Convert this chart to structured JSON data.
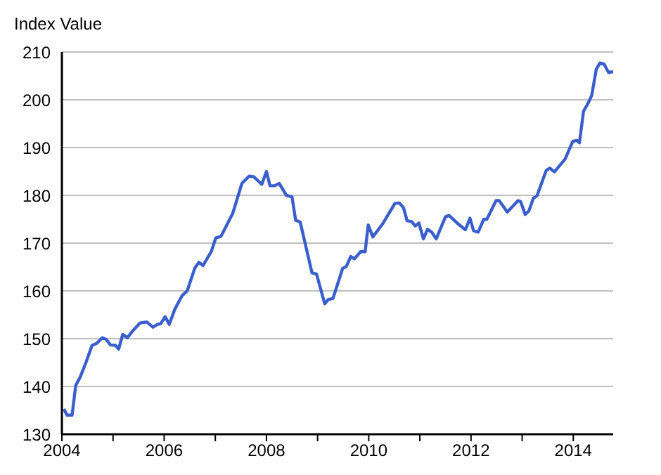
{
  "chart_data": {
    "type": "line",
    "ylabel": "Index Value",
    "x": [
      2004.04,
      2004.1,
      2004.2,
      2004.27,
      2004.36,
      2004.47,
      2004.59,
      2004.68,
      2004.79,
      2004.86,
      2004.95,
      2005.05,
      2005.11,
      2005.19,
      2005.28,
      2005.39,
      2005.53,
      2005.66,
      2005.78,
      2005.87,
      2005.93,
      2006.02,
      2006.1,
      2006.21,
      2006.35,
      2006.45,
      2006.6,
      2006.68,
      2006.76,
      2006.92,
      2007.01,
      2007.11,
      2007.34,
      2007.52,
      2007.66,
      2007.75,
      2007.91,
      2008.0,
      2008.07,
      2008.16,
      2008.25,
      2008.39,
      2008.5,
      2008.57,
      2008.66,
      2008.89,
      2008.98,
      2009.14,
      2009.21,
      2009.3,
      2009.49,
      2009.56,
      2009.65,
      2009.72,
      2009.84,
      2009.93,
      2009.99,
      2010.08,
      2010.27,
      2010.51,
      2010.6,
      2010.68,
      2010.75,
      2010.84,
      2010.91,
      2010.98,
      2011.07,
      2011.15,
      2011.23,
      2011.32,
      2011.5,
      2011.57,
      2011.73,
      2011.89,
      2011.98,
      2012.05,
      2012.14,
      2012.25,
      2012.31,
      2012.49,
      2012.55,
      2012.71,
      2012.92,
      2012.97,
      2013.06,
      2013.13,
      2013.22,
      2013.29,
      2013.47,
      2013.54,
      2013.63,
      2013.84,
      2013.9,
      2013.99,
      2014.07,
      2014.12,
      2014.2,
      2014.29,
      2014.36,
      2014.45,
      2014.52,
      2014.6,
      2014.69,
      2014.78
    ],
    "series": [
      {
        "color": "#3a5fcd",
        "values": [
          135.3,
          134,
          134,
          140.2,
          142,
          145,
          148.6,
          149,
          150.2,
          149.9,
          148.7,
          148.6,
          147.8,
          150.9,
          150.2,
          151.7,
          153.3,
          153.5,
          152.4,
          153,
          153.1,
          154.6,
          153,
          156.2,
          159,
          160,
          164.8,
          166,
          165.3,
          168.2,
          171.1,
          171.4,
          176.2,
          182.5,
          184,
          183.9,
          182.3,
          185,
          182,
          182,
          182.5,
          180,
          179.7,
          174.8,
          174.4,
          163.8,
          163.5,
          157.3,
          158.2,
          158.4,
          164.7,
          165.1,
          167.2,
          166.7,
          168.2,
          168.2,
          173.8,
          171.3,
          174,
          178.3,
          178.4,
          177.4,
          174.7,
          174.5,
          173.6,
          174.2,
          170.9,
          172.9,
          172.3,
          170.9,
          175.5,
          175.8,
          174.2,
          172.8,
          175.2,
          172.6,
          172.3,
          175,
          175,
          178.9,
          178.9,
          176.5,
          178.9,
          178.7,
          176,
          176.7,
          179.4,
          179.9,
          185.2,
          185.7,
          184.9,
          187.6,
          189.1,
          191.3,
          191.5,
          191,
          197.6,
          199.3,
          200.9,
          206.4,
          207.7,
          207.5,
          205.7,
          205.9
        ]
      }
    ],
    "xlim": [
      2004,
      2014.78
    ],
    "xticks": [
      2004,
      {
        "value": 2005,
        "label": null
      },
      2006,
      {
        "value": 2007,
        "label": null
      },
      2008,
      {
        "value": 2009,
        "label": null
      },
      2010,
      {
        "value": 2011,
        "label": null
      },
      2012,
      {
        "value": 2013,
        "label": null
      },
      2014
    ],
    "ylim": [
      130,
      210
    ],
    "yticks": [
      130,
      140,
      150,
      160,
      170,
      180,
      190,
      200,
      210
    ],
    "grid": "y",
    "marker": "none",
    "line_style": "solid"
  }
}
